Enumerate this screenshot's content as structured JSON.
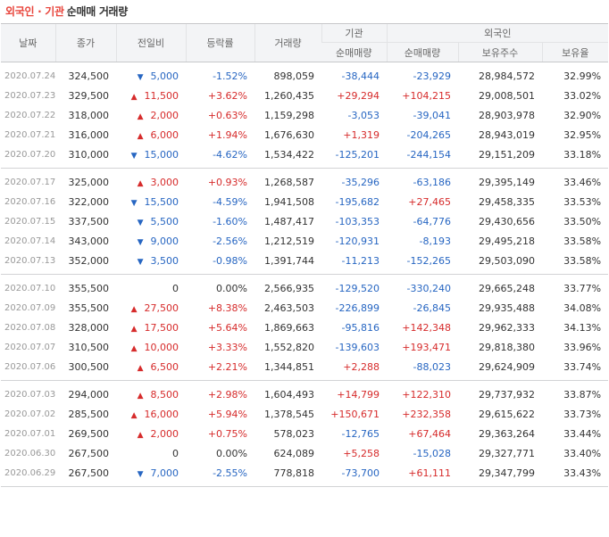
{
  "title": {
    "highlight": "외국인 · 기관",
    "rest": "순매매 거래량"
  },
  "headers": {
    "date": "날짜",
    "close": "종가",
    "change": "전일비",
    "rate": "등락률",
    "volume": "거래량",
    "inst_group": "기관",
    "inst_net": "순매매량",
    "foreign_group": "외국인",
    "foreign_net": "순매매량",
    "foreign_hold": "보유주수",
    "foreign_ratio": "보유율"
  },
  "icons": {
    "up": "▲",
    "down": "▼"
  },
  "colors": {
    "up": "#d62b2b",
    "down": "#2766c2",
    "title_accent": "#e8453c"
  },
  "rows": [
    {
      "date": "2020.07.24",
      "close": "324,500",
      "dir": "down",
      "change": "5,000",
      "rate": "-1.52%",
      "volume": "898,059",
      "inst": "-38,444",
      "foreign": "-23,929",
      "hold": "28,984,572",
      "ratio": "32.99%"
    },
    {
      "date": "2020.07.23",
      "close": "329,500",
      "dir": "up",
      "change": "11,500",
      "rate": "+3.62%",
      "volume": "1,260,435",
      "inst": "+29,294",
      "foreign": "+104,215",
      "hold": "29,008,501",
      "ratio": "33.02%"
    },
    {
      "date": "2020.07.22",
      "close": "318,000",
      "dir": "up",
      "change": "2,000",
      "rate": "+0.63%",
      "volume": "1,159,298",
      "inst": "-3,053",
      "foreign": "-39,041",
      "hold": "28,903,978",
      "ratio": "32.90%"
    },
    {
      "date": "2020.07.21",
      "close": "316,000",
      "dir": "up",
      "change": "6,000",
      "rate": "+1.94%",
      "volume": "1,676,630",
      "inst": "+1,319",
      "foreign": "-204,265",
      "hold": "28,943,019",
      "ratio": "32.95%"
    },
    {
      "date": "2020.07.20",
      "close": "310,000",
      "dir": "down",
      "change": "15,000",
      "rate": "-4.62%",
      "volume": "1,534,422",
      "inst": "-125,201",
      "foreign": "-244,154",
      "hold": "29,151,209",
      "ratio": "33.18%"
    },
    {
      "date": "2020.07.17",
      "close": "325,000",
      "dir": "up",
      "change": "3,000",
      "rate": "+0.93%",
      "volume": "1,268,587",
      "inst": "-35,296",
      "foreign": "-63,186",
      "hold": "29,395,149",
      "ratio": "33.46%"
    },
    {
      "date": "2020.07.16",
      "close": "322,000",
      "dir": "down",
      "change": "15,500",
      "rate": "-4.59%",
      "volume": "1,941,508",
      "inst": "-195,682",
      "foreign": "+27,465",
      "hold": "29,458,335",
      "ratio": "33.53%"
    },
    {
      "date": "2020.07.15",
      "close": "337,500",
      "dir": "down",
      "change": "5,500",
      "rate": "-1.60%",
      "volume": "1,487,417",
      "inst": "-103,353",
      "foreign": "-64,776",
      "hold": "29,430,656",
      "ratio": "33.50%"
    },
    {
      "date": "2020.07.14",
      "close": "343,000",
      "dir": "down",
      "change": "9,000",
      "rate": "-2.56%",
      "volume": "1,212,519",
      "inst": "-120,931",
      "foreign": "-8,193",
      "hold": "29,495,218",
      "ratio": "33.58%"
    },
    {
      "date": "2020.07.13",
      "close": "352,000",
      "dir": "down",
      "change": "3,500",
      "rate": "-0.98%",
      "volume": "1,391,744",
      "inst": "-11,213",
      "foreign": "-152,265",
      "hold": "29,503,090",
      "ratio": "33.58%"
    },
    {
      "date": "2020.07.10",
      "close": "355,500",
      "dir": "flat",
      "change": "0",
      "rate": "0.00%",
      "volume": "2,566,935",
      "inst": "-129,520",
      "foreign": "-330,240",
      "hold": "29,665,248",
      "ratio": "33.77%"
    },
    {
      "date": "2020.07.09",
      "close": "355,500",
      "dir": "up",
      "change": "27,500",
      "rate": "+8.38%",
      "volume": "2,463,503",
      "inst": "-226,899",
      "foreign": "-26,845",
      "hold": "29,935,488",
      "ratio": "34.08%"
    },
    {
      "date": "2020.07.08",
      "close": "328,000",
      "dir": "up",
      "change": "17,500",
      "rate": "+5.64%",
      "volume": "1,869,663",
      "inst": "-95,816",
      "foreign": "+142,348",
      "hold": "29,962,333",
      "ratio": "34.13%"
    },
    {
      "date": "2020.07.07",
      "close": "310,500",
      "dir": "up",
      "change": "10,000",
      "rate": "+3.33%",
      "volume": "1,552,820",
      "inst": "-139,603",
      "foreign": "+193,471",
      "hold": "29,818,380",
      "ratio": "33.96%"
    },
    {
      "date": "2020.07.06",
      "close": "300,500",
      "dir": "up",
      "change": "6,500",
      "rate": "+2.21%",
      "volume": "1,344,851",
      "inst": "+2,288",
      "foreign": "-88,023",
      "hold": "29,624,909",
      "ratio": "33.74%"
    },
    {
      "date": "2020.07.03",
      "close": "294,000",
      "dir": "up",
      "change": "8,500",
      "rate": "+2.98%",
      "volume": "1,604,493",
      "inst": "+14,799",
      "foreign": "+122,310",
      "hold": "29,737,932",
      "ratio": "33.87%"
    },
    {
      "date": "2020.07.02",
      "close": "285,500",
      "dir": "up",
      "change": "16,000",
      "rate": "+5.94%",
      "volume": "1,378,545",
      "inst": "+150,671",
      "foreign": "+232,358",
      "hold": "29,615,622",
      "ratio": "33.73%"
    },
    {
      "date": "2020.07.01",
      "close": "269,500",
      "dir": "up",
      "change": "2,000",
      "rate": "+0.75%",
      "volume": "578,023",
      "inst": "-12,765",
      "foreign": "+67,464",
      "hold": "29,363,264",
      "ratio": "33.44%"
    },
    {
      "date": "2020.06.30",
      "close": "267,500",
      "dir": "flat",
      "change": "0",
      "rate": "0.00%",
      "volume": "624,089",
      "inst": "+5,258",
      "foreign": "-15,028",
      "hold": "29,327,771",
      "ratio": "33.40%"
    },
    {
      "date": "2020.06.29",
      "close": "267,500",
      "dir": "down",
      "change": "7,000",
      "rate": "-2.55%",
      "volume": "778,818",
      "inst": "-73,700",
      "foreign": "+61,111",
      "hold": "29,347,799",
      "ratio": "33.43%"
    }
  ]
}
